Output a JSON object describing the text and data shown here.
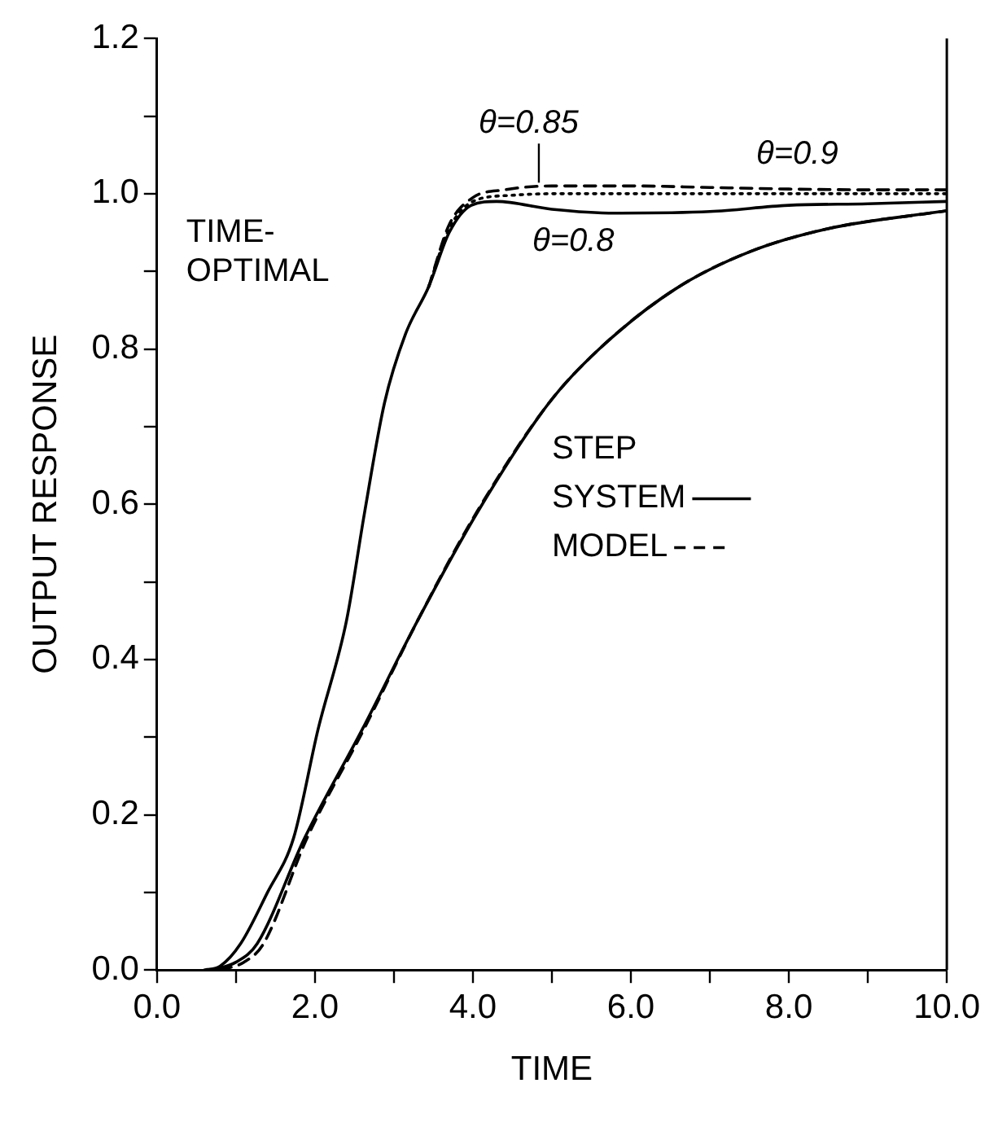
{
  "chart_data": {
    "type": "line",
    "xlabel": "TIME",
    "ylabel": "OUTPUT RESPONSE",
    "legend_title": "STEP",
    "legend": "right",
    "grid": false,
    "marker": "none",
    "xlim": [
      0,
      10
    ],
    "ylim": [
      0,
      1.2
    ],
    "xticks": [
      {
        "value": 0,
        "label": "0.0"
      },
      {
        "value": 1,
        "label": null
      },
      {
        "value": 2,
        "label": "2.0"
      },
      {
        "value": 3,
        "label": null
      },
      {
        "value": 4,
        "label": "4.0"
      },
      {
        "value": 5,
        "label": null
      },
      {
        "value": 6,
        "label": "6.0"
      },
      {
        "value": 7,
        "label": null
      },
      {
        "value": 8,
        "label": "8.0"
      },
      {
        "value": 9,
        "label": null
      },
      {
        "value": 10,
        "label": "10.0"
      }
    ],
    "yticks": [
      {
        "value": 0,
        "label": "0.0"
      },
      {
        "value": 0.1,
        "label": null
      },
      {
        "value": 0.2,
        "label": "0.2"
      },
      {
        "value": 0.3,
        "label": null
      },
      {
        "value": 0.4,
        "label": "0.4"
      },
      {
        "value": 0.5,
        "label": null
      },
      {
        "value": 0.6,
        "label": "0.6"
      },
      {
        "value": 0.7,
        "label": null
      },
      {
        "value": 0.8,
        "label": "0.8"
      },
      {
        "value": 0.9,
        "label": null
      },
      {
        "value": 1.0,
        "label": "1.0"
      },
      {
        "value": 1.1,
        "label": null
      },
      {
        "value": 1.2,
        "label": "1.2"
      }
    ],
    "annotations": [
      "TIME-OPTIMAL"
    ],
    "series": [
      {
        "name": "θ=0.8",
        "color": "#000000",
        "line_style": "solid",
        "x": [
          0.6,
          0.8,
          1.06,
          1.4,
          1.73,
          2.04,
          2.4,
          2.63,
          2.88,
          3.15,
          3.44,
          3.7,
          3.98,
          4.3,
          5.0,
          5.8,
          7,
          8,
          9,
          10
        ],
        "values": [
          0,
          0.005,
          0.034,
          0.1,
          0.17,
          0.31,
          0.45,
          0.59,
          0.73,
          0.82,
          0.88,
          0.95,
          0.985,
          0.99,
          0.98,
          0.975,
          0.977,
          0.985,
          0.987,
          0.99
        ]
      },
      {
        "name": "θ=0.85",
        "color": "#000000",
        "line_style": "dashed",
        "x": [
          3.44,
          3.7,
          4.0,
          4.4,
          5.0,
          6,
          7,
          8,
          9,
          10
        ],
        "values": [
          0.88,
          0.96,
          0.995,
          1.005,
          1.01,
          1.01,
          1.008,
          1.006,
          1.005,
          1.005
        ]
      },
      {
        "name": "θ=0.9",
        "color": "#000000",
        "line_style": "dotted",
        "x": [
          3.44,
          3.7,
          4.0,
          4.5,
          5.0,
          6,
          7,
          8,
          10
        ],
        "values": [
          0.88,
          0.955,
          0.99,
          0.998,
          1.0,
          1.0,
          1.0,
          1.0,
          1.0
        ]
      },
      {
        "name": "SYSTEM",
        "color": "#000000",
        "line_style": "solid",
        "x": [
          0.7,
          1.0,
          1.27,
          1.87,
          2.6,
          3.3,
          4.06,
          4.96,
          5.6,
          6.56,
          7.5,
          8.5,
          10
        ],
        "values": [
          0,
          0.01,
          0.034,
          0.17,
          0.31,
          0.45,
          0.59,
          0.73,
          0.8,
          0.877,
          0.925,
          0.955,
          0.978
        ]
      },
      {
        "name": "MODEL",
        "color": "#000000",
        "line_style": "dashed",
        "x": [
          0.8,
          1.1,
          1.35,
          1.9,
          2.62,
          3.3,
          4.05,
          4.96,
          5.6,
          6.56,
          7.5,
          8.5,
          10
        ],
        "values": [
          0,
          0.01,
          0.034,
          0.17,
          0.31,
          0.45,
          0.59,
          0.73,
          0.8,
          0.877,
          0.925,
          0.955,
          0.978
        ]
      }
    ]
  }
}
